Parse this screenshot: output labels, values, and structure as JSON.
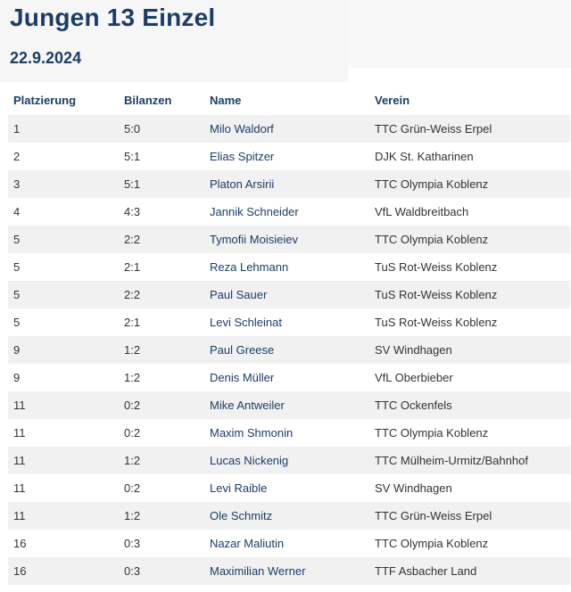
{
  "page": {
    "title": "Jungen 13 Einzel",
    "date": "22.9.2024"
  },
  "table": {
    "headers": [
      "Platzierung",
      "Bilanzen",
      "Name",
      "Verein"
    ],
    "rows": [
      {
        "placement": "1",
        "record": "5:0",
        "name": "Milo Waldorf",
        "club": "TTC Grün-Weiss Erpel"
      },
      {
        "placement": "2",
        "record": "5:1",
        "name": "Elias Spitzer",
        "club": "DJK St. Katharinen"
      },
      {
        "placement": "3",
        "record": "5:1",
        "name": "Platon Arsirii",
        "club": "TTC Olympia Koblenz"
      },
      {
        "placement": "4",
        "record": "4:3",
        "name": "Jannik Schneider",
        "club": "VfL Waldbreitbach"
      },
      {
        "placement": "5",
        "record": "2:2",
        "name": "Tymofii Moisieiev",
        "club": "TTC Olympia Koblenz"
      },
      {
        "placement": "5",
        "record": "2:1",
        "name": "Reza Lehmann",
        "club": "TuS Rot-Weiss Koblenz"
      },
      {
        "placement": "5",
        "record": "2:2",
        "name": "Paul Sauer",
        "club": "TuS Rot-Weiss Koblenz"
      },
      {
        "placement": "5",
        "record": "2:1",
        "name": "Levi Schleinat",
        "club": "TuS Rot-Weiss Koblenz"
      },
      {
        "placement": "9",
        "record": "1:2",
        "name": "Paul Greese",
        "club": "SV Windhagen"
      },
      {
        "placement": "9",
        "record": "1:2",
        "name": "Denis Müller",
        "club": "VfL Oberbieber"
      },
      {
        "placement": "11",
        "record": "0:2",
        "name": "Mike Antweiler",
        "club": "TTC Ockenfels"
      },
      {
        "placement": "11",
        "record": "0:2",
        "name": "Maxim Shmonin",
        "club": "TTC Olympia Koblenz"
      },
      {
        "placement": "11",
        "record": "1:2",
        "name": "Lucas Nickenig",
        "club": "TTC Mülheim-Urmitz/Bahnhof"
      },
      {
        "placement": "11",
        "record": "0:2",
        "name": "Levi Raible",
        "club": "SV Windhagen"
      },
      {
        "placement": "11",
        "record": "1:2",
        "name": "Ole Schmitz",
        "club": "TTC Grün-Weiss Erpel"
      },
      {
        "placement": "16",
        "record": "0:3",
        "name": "Nazar Maliutin",
        "club": "TTC Olympia Koblenz"
      },
      {
        "placement": "16",
        "record": "0:3",
        "name": "Maximilian Werner",
        "club": "TTF Asbacher Land"
      }
    ]
  },
  "colors": {
    "heading": "#1c3d66",
    "row_stripe": "#f1f1f1"
  }
}
